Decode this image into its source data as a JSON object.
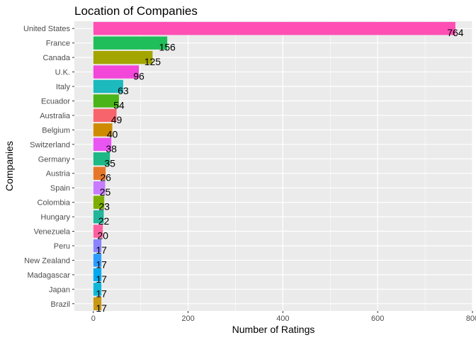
{
  "chart_data": {
    "type": "bar",
    "orientation": "horizontal",
    "title": "Location of Companies",
    "xlabel": "Number of Ratings",
    "ylabel": "Companies",
    "xlim": [
      -40,
      800
    ],
    "x_ticks": [
      0,
      200,
      400,
      600,
      800
    ],
    "grid": true,
    "legend": "none",
    "categories": [
      "United States",
      "France",
      "Canada",
      "U.K.",
      "Italy",
      "Ecuador",
      "Australia",
      "Belgium",
      "Switzerland",
      "Germany",
      "Austria",
      "Spain",
      "Colombia",
      "Hungary",
      "Venezuela",
      "Peru",
      "New Zealand",
      "Madagascar",
      "Japan",
      "Brazil"
    ],
    "values": [
      764,
      156,
      125,
      96,
      63,
      54,
      49,
      40,
      38,
      35,
      26,
      25,
      23,
      22,
      20,
      17,
      17,
      17,
      17,
      17
    ],
    "labels": [
      "764",
      "156",
      "125",
      "96",
      "63",
      "54",
      "49",
      "40",
      "38",
      "35",
      "26",
      "25",
      "23",
      "22",
      "20",
      "17",
      "17",
      "17",
      "17",
      "17"
    ],
    "colors": [
      "#FF4FB4",
      "#1FBE5A",
      "#A3A500",
      "#F247D8",
      "#1CB9BD",
      "#4BB418",
      "#F8646B",
      "#CF8B00",
      "#E955F2",
      "#1DB885",
      "#E6772A",
      "#C77CFF",
      "#7CAE00",
      "#22B59A",
      "#FF5FA0",
      "#8A83FF",
      "#2C9CFF",
      "#00A9F0",
      "#10B6D8",
      "#C89714"
    ],
    "panel_background": "#EBEBEB",
    "grid_color": "#FFFFFF"
  }
}
